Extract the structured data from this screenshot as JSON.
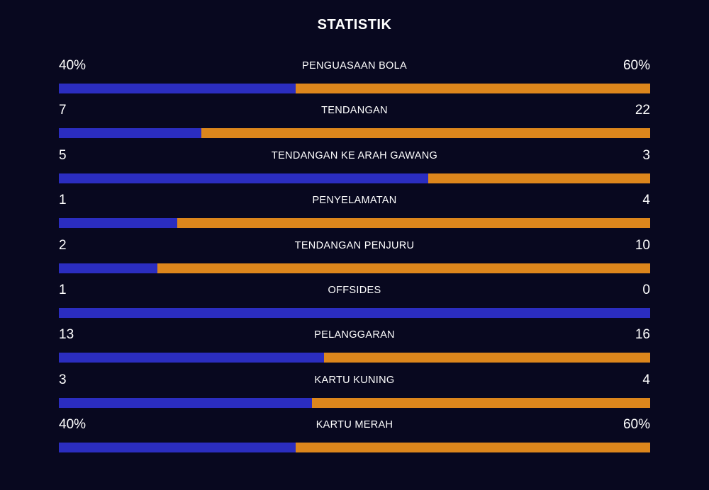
{
  "title": "STATISTIK",
  "colors": {
    "background": "#08081f",
    "home": "#2b2dbf",
    "away": "#dc861c",
    "text": "#ffffff"
  },
  "stats": [
    {
      "label": "PENGUASAAN BOLA",
      "home": "40%",
      "away": "60%",
      "home_share": 0.4
    },
    {
      "label": "TENDANGAN",
      "home": "7",
      "away": "22",
      "home_share": 0.2414
    },
    {
      "label": "TENDANGAN KE ARAH GAWANG",
      "home": "5",
      "away": "3",
      "home_share": 0.625
    },
    {
      "label": "PENYELAMATAN",
      "home": "1",
      "away": "4",
      "home_share": 0.2
    },
    {
      "label": "TENDANGAN PENJURU",
      "home": "2",
      "away": "10",
      "home_share": 0.1667
    },
    {
      "label": "OFFSIDES",
      "home": "1",
      "away": "0",
      "home_share": 1.0
    },
    {
      "label": "PELANGGARAN",
      "home": "13",
      "away": "16",
      "home_share": 0.4483
    },
    {
      "label": "KARTU KUNING",
      "home": "3",
      "away": "4",
      "home_share": 0.4286
    },
    {
      "label": "KARTU MERAH",
      "home": "40%",
      "away": "60%",
      "home_share": 0.4
    }
  ]
}
